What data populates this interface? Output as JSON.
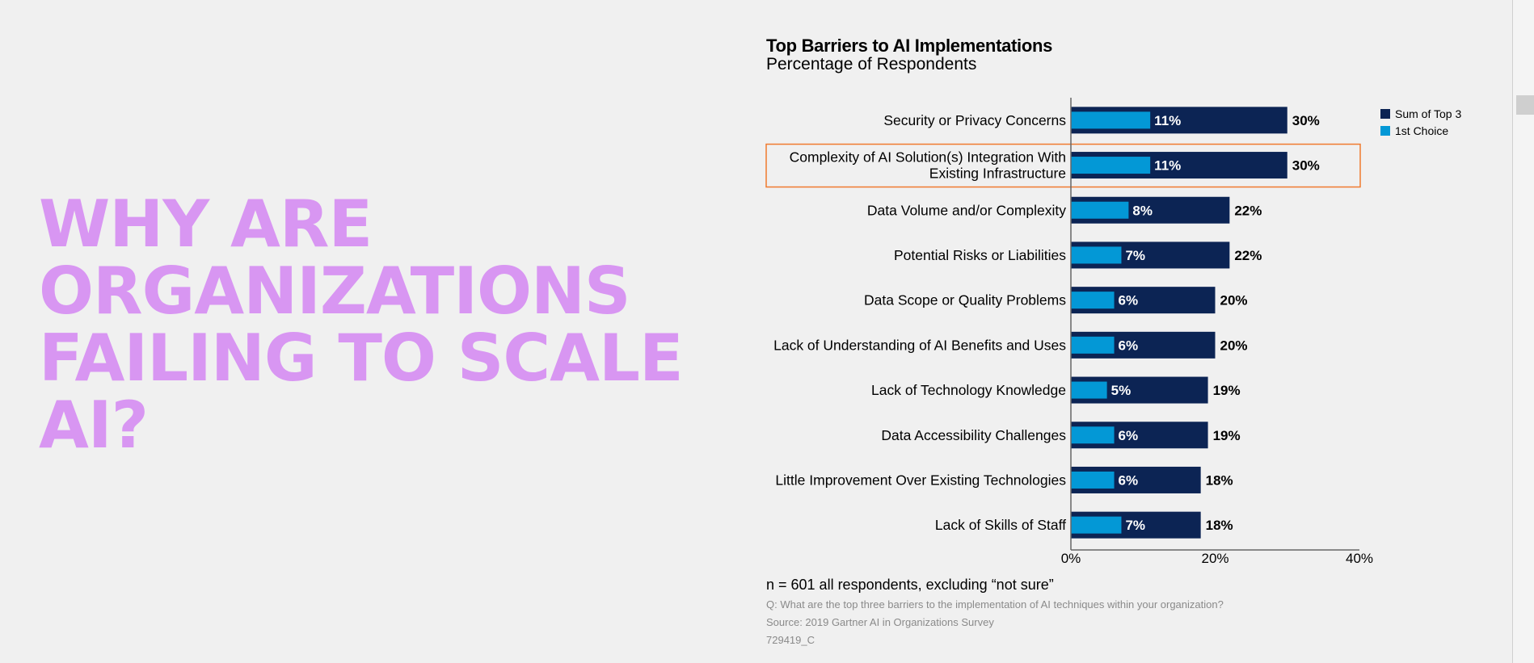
{
  "headline": {
    "lines": [
      "WHY ARE",
      "ORGANIZATIONS",
      "FAILING TO SCALE",
      "AI?"
    ]
  },
  "colors": {
    "headline": "#d896f2",
    "sum_top3": "#0c2454",
    "first_choice": "#0398d6",
    "highlight": "#f07a2e"
  },
  "chart_data": {
    "type": "bar",
    "orientation": "horizontal",
    "title": "Top Barriers to AI Implementations",
    "subtitle": "Percentage of Respondents",
    "categories": [
      "Security or Privacy Concerns",
      "Complexity of AI Solution(s) Integration With Existing Infrastructure",
      "Data Volume and/or Complexity",
      "Potential Risks or Liabilities",
      "Data Scope or Quality Problems",
      "Lack of Understanding of AI Benefits and Uses",
      "Lack of Technology Knowledge",
      "Data Accessibility Challenges",
      "Little Improvement Over Existing Technologies",
      "Lack of Skills of Staff"
    ],
    "category_lines": [
      [
        "Security or Privacy Concerns"
      ],
      [
        "Complexity of AI Solution(s) Integration With",
        "Existing Infrastructure"
      ],
      [
        "Data Volume and/or Complexity"
      ],
      [
        "Potential Risks or Liabilities"
      ],
      [
        "Data Scope or Quality Problems"
      ],
      [
        "Lack of Understanding of AI Benefits and Uses"
      ],
      [
        "Lack of Technology Knowledge"
      ],
      [
        "Data Accessibility Challenges"
      ],
      [
        "Little Improvement Over Existing Technologies"
      ],
      [
        "Lack of Skills of Staff"
      ]
    ],
    "series": [
      {
        "name": "Sum of Top 3",
        "values": [
          30,
          30,
          22,
          22,
          20,
          20,
          19,
          19,
          18,
          18
        ]
      },
      {
        "name": "1st Choice",
        "values": [
          11,
          11,
          8,
          7,
          6,
          6,
          5,
          6,
          6,
          7
        ]
      }
    ],
    "value_suffix": "%",
    "xlim": [
      0,
      40
    ],
    "xticks": [
      0,
      20,
      40
    ],
    "xtick_labels": [
      "0%",
      "20%",
      "40%"
    ],
    "highlighted_category": 1,
    "legend_position": "top-right",
    "grid": false
  },
  "footer": {
    "note": "n = 601 all respondents, excluding “not sure”",
    "question": "Q: What are the top three barriers to the implementation of AI techniques within your organization?",
    "source": "Source: 2019 Gartner AI in Organizations Survey",
    "id": "729419_C"
  }
}
